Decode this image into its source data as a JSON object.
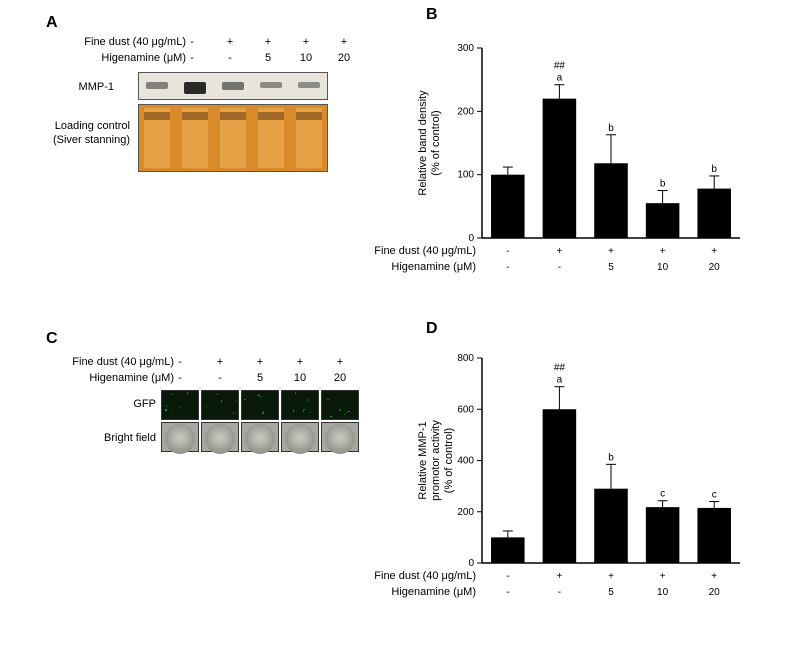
{
  "panelA": {
    "label": "A",
    "fine_dust_label": "Fine dust (40 μg/mL)",
    "higenamine_label": "Higenamine (μM)",
    "fine_dust_vals": [
      "-",
      "+",
      "+",
      "+",
      "+"
    ],
    "higenamine_vals": [
      "-",
      "-",
      "5",
      "10",
      "20"
    ],
    "mmp1_label": "MMP-1",
    "loading_label1": "Loading control",
    "loading_label2": "(Siver stanning)",
    "band_intensity": [
      0.35,
      0.95,
      0.45,
      0.3,
      0.28
    ],
    "blot_bg": "#e8e4dc",
    "band_color": "#222222",
    "silver_bg": "#d98a2a"
  },
  "panelB": {
    "label": "B",
    "type": "bar",
    "ylabel1": "Relative band density",
    "ylabel2": "(% of control)",
    "ylim": [
      0,
      300
    ],
    "ytick_step": 100,
    "values": [
      100,
      220,
      118,
      55,
      78
    ],
    "errors": [
      12,
      22,
      45,
      20,
      20
    ],
    "sig": [
      "",
      "##",
      "",
      "",
      ""
    ],
    "letter": [
      "",
      "a",
      "b",
      "b",
      "b"
    ],
    "bar_color": "#000000",
    "fine_dust_label": "Fine dust (40 μg/mL)",
    "higenamine_label": "Higenamine (μM)",
    "fine_dust_vals": [
      "-",
      "+",
      "+",
      "+",
      "+"
    ],
    "higenamine_vals": [
      "-",
      "-",
      "5",
      "10",
      "20"
    ]
  },
  "panelC": {
    "label": "C",
    "fine_dust_label": "Fine dust (40 μg/mL)",
    "higenamine_label": "Higenamine (μM)",
    "fine_dust_vals": [
      "-",
      "+",
      "+",
      "+",
      "+"
    ],
    "higenamine_vals": [
      "-",
      "-",
      "5",
      "10",
      "20"
    ],
    "gfp_label": "GFP",
    "bright_label": "Bright field",
    "gfp_bg": "#0a1a0a",
    "gfp_speck_color": "#3fae3f",
    "bright_bg": "#a8a8a2"
  },
  "panelD": {
    "label": "D",
    "type": "bar",
    "ylabel1": "Relative MMP-1",
    "ylabel2": "promotor activity",
    "ylabel3": "(% of control)",
    "ylim": [
      0,
      800
    ],
    "ytick_step": 200,
    "values": [
      100,
      600,
      290,
      218,
      215
    ],
    "errors": [
      25,
      88,
      95,
      25,
      25
    ],
    "sig": [
      "",
      "##",
      "",
      "",
      ""
    ],
    "letter": [
      "",
      "a",
      "b",
      "c",
      "c"
    ],
    "bar_color": "#000000",
    "fine_dust_label": "Fine dust (40 μg/mL)",
    "higenamine_label": "Higenamine (μM)",
    "fine_dust_vals": [
      "-",
      "+",
      "+",
      "+",
      "+"
    ],
    "higenamine_vals": [
      "-",
      "-",
      "5",
      "10",
      "20"
    ]
  }
}
